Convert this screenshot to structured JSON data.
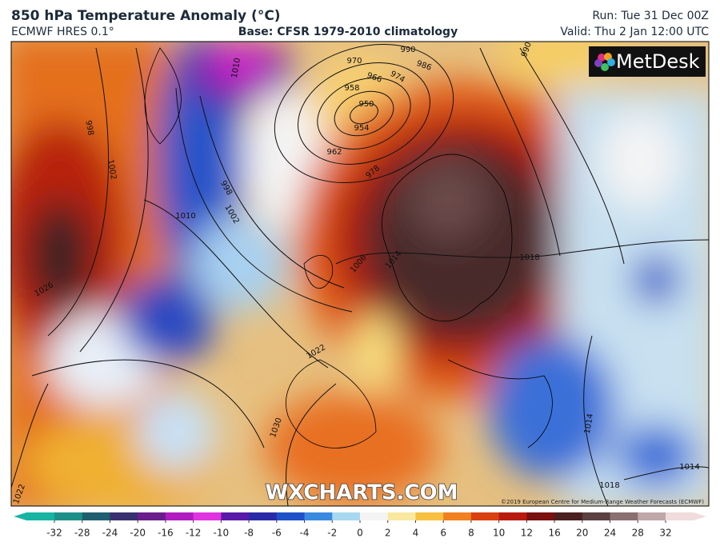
{
  "header": {
    "title": "850 hPa Temperature Anomaly (°C)",
    "model": "ECMWF HRES 0.1°",
    "base": "Base: CFSR 1979-2010 climatology",
    "run": "Run: Tue 31 Dec 00Z",
    "valid": "Valid: Thu 2 Jan 12:00 UTC"
  },
  "map": {
    "logo": "MetDesk",
    "watermark": "WXCHARTS.COM",
    "copyright": "©2019 European Centre for Medium-Range Weather Forecasts (ECMWF)",
    "isobar_labels": [
      990,
      986,
      970,
      966,
      974,
      958,
      950,
      954,
      962,
      978,
      998,
      1002,
      1010,
      998,
      1002,
      1010,
      1006,
      1014,
      1018,
      1022,
      1026,
      1030,
      1014,
      1014,
      1018,
      1022,
      990
    ]
  },
  "colorbar": {
    "ticks": [
      -32,
      -28,
      -24,
      -20,
      -16,
      -12,
      -10,
      -8,
      -6,
      -4,
      -2,
      0,
      2,
      4,
      6,
      8,
      10,
      12,
      16,
      20,
      24,
      28,
      32
    ],
    "colors": [
      "#17b4a2",
      "#1f9088",
      "#1f5f70",
      "#38306e",
      "#6a1e8c",
      "#b01cc0",
      "#e034e0",
      "#5a1aa8",
      "#2a2aa8",
      "#1f50c8",
      "#3a8ae0",
      "#a8d8f0",
      "#f4f4f4",
      "#f8e8a0",
      "#f8c040",
      "#f08020",
      "#d84010",
      "#b81a10",
      "#7a1010",
      "#4a2020",
      "#5a4040",
      "#8a7070",
      "#c0a8a8",
      "#f0dcdc"
    ]
  }
}
